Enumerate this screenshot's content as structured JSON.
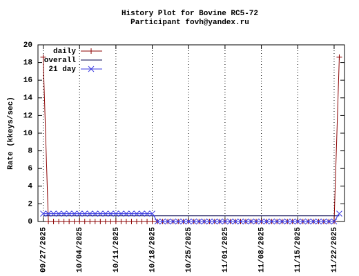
{
  "chart_data": {
    "type": "line",
    "title": "History Plot for Bovine RC5-72",
    "subtitle": "Participant fovh@yandex.ru",
    "y_label": "Rate (kkeys/sec)",
    "x": [
      "09/27/2025",
      "09/28/2025",
      "09/29/2025",
      "09/30/2025",
      "10/01/2025",
      "10/02/2025",
      "10/03/2025",
      "10/04/2025",
      "10/05/2025",
      "10/06/2025",
      "10/07/2025",
      "10/08/2025",
      "10/09/2025",
      "10/10/2025",
      "10/11/2025",
      "10/12/2025",
      "10/13/2025",
      "10/14/2025",
      "10/15/2025",
      "10/16/2025",
      "10/17/2025",
      "10/18/2025",
      "10/19/2025",
      "10/20/2025",
      "10/21/2025",
      "10/22/2025",
      "10/23/2025",
      "10/24/2025",
      "10/25/2025",
      "10/26/2025",
      "10/27/2025",
      "10/28/2025",
      "10/29/2025",
      "10/30/2025",
      "10/31/2025",
      "11/01/2025",
      "11/02/2025",
      "11/03/2025",
      "11/04/2025",
      "11/05/2025",
      "11/06/2025",
      "11/07/2025",
      "11/08/2025",
      "11/09/2025",
      "11/10/2025",
      "11/11/2025",
      "11/12/2025",
      "11/13/2025",
      "11/14/2025",
      "11/15/2025",
      "11/16/2025",
      "11/17/2025",
      "11/18/2025",
      "11/19/2025",
      "11/20/2025",
      "11/21/2025",
      "11/22/2025",
      "11/23/2025"
    ],
    "series": [
      {
        "name": "daily",
        "color": "#8b0000",
        "marker": "plus",
        "values": [
          18.6,
          0,
          0,
          0,
          0,
          0,
          0,
          0,
          0,
          0,
          0,
          0,
          0,
          0,
          0,
          0,
          0,
          0,
          0,
          0,
          0,
          0,
          0,
          0,
          0,
          0,
          0,
          0,
          0,
          0,
          0,
          0,
          0,
          0,
          0,
          0,
          0,
          0,
          0,
          0,
          0,
          0,
          0,
          0,
          0,
          0,
          0,
          0,
          0,
          0,
          0,
          0,
          0,
          0,
          0,
          0,
          0,
          18.6
        ]
      },
      {
        "name": "overall",
        "color": "#00004a",
        "marker": "none",
        "values": [
          0.64,
          0.64,
          0.64,
          0.64,
          0.64,
          0.64,
          0.64,
          0.64,
          0.64,
          0.64,
          0.64,
          0.64,
          0.64,
          0.64,
          0.64,
          0.64,
          0.64,
          0.64,
          0.64,
          0.64,
          0.64,
          0.64,
          0.64,
          0.64,
          0.64,
          0.64,
          0.64,
          0.64,
          0.64,
          0.64,
          0.64,
          0.64,
          0.64,
          0.64,
          0.64,
          0.64,
          0.64,
          0.64,
          0.64,
          0.64,
          0.64,
          0.64,
          0.64,
          0.64,
          0.64,
          0.64,
          0.64,
          0.64,
          0.64,
          0.64,
          0.64,
          0.64,
          0.64,
          0.64,
          0.64,
          0.64,
          0.64,
          0.64
        ]
      },
      {
        "name": "21 day",
        "color": "#3a3ae0",
        "marker": "cross",
        "values": [
          0.89,
          0.89,
          0.89,
          0.89,
          0.89,
          0.89,
          0.89,
          0.89,
          0.89,
          0.89,
          0.89,
          0.89,
          0.89,
          0.89,
          0.89,
          0.89,
          0.89,
          0.89,
          0.89,
          0.89,
          0.89,
          0.89,
          0,
          0,
          0,
          0,
          0,
          0,
          0,
          0,
          0,
          0,
          0,
          0,
          0,
          0,
          0,
          0,
          0,
          0,
          0,
          0,
          0,
          0,
          0,
          0,
          0,
          0,
          0,
          0,
          0,
          0,
          0,
          0,
          0,
          0,
          0,
          0.89
        ]
      }
    ],
    "xlim": [
      "09/26/2025",
      "11/24/2025"
    ],
    "xticks": [
      "09/27/2025",
      "10/04/2025",
      "10/11/2025",
      "10/18/2025",
      "10/25/2025",
      "11/01/2025",
      "11/08/2025",
      "11/15/2025",
      "11/22/2025"
    ],
    "ylim": [
      0,
      20
    ],
    "yticks": [
      0,
      2,
      4,
      6,
      8,
      10,
      12,
      14,
      16,
      18,
      20
    ],
    "grid": "x",
    "legend": "top-left"
  }
}
